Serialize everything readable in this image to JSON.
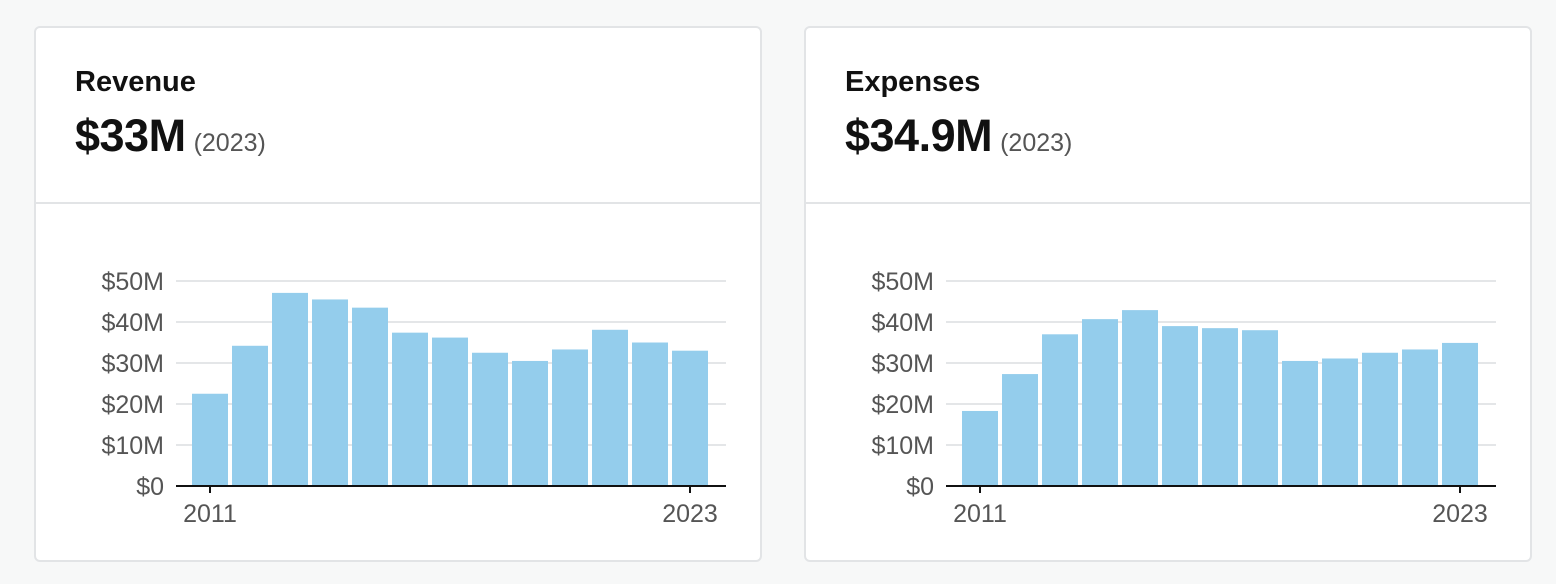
{
  "cards": [
    {
      "title": "Revenue",
      "value": "$33M",
      "period": "(2023)"
    },
    {
      "title": "Expenses",
      "value": "$34.9M",
      "period": "(2023)"
    }
  ],
  "chart_data": [
    {
      "type": "bar",
      "categories": [
        "2011",
        "2012",
        "2013",
        "2014",
        "2015",
        "2016",
        "2017",
        "2018",
        "2019",
        "2020",
        "2021",
        "2022",
        "2023"
      ],
      "values": [
        22.5,
        34.2,
        47.1,
        45.5,
        43.5,
        37.4,
        36.2,
        32.5,
        30.5,
        33.3,
        38.1,
        35.0,
        33.0
      ],
      "ylim": [
        0,
        50
      ],
      "yticks": [
        0,
        10,
        20,
        30,
        40,
        50
      ],
      "ytick_labels": [
        "$0",
        "$10M",
        "$20M",
        "$30M",
        "$40M",
        "$50M"
      ],
      "xtick_labels": [
        "2011",
        "2023"
      ],
      "grid": true,
      "bar_color": "#94cdec"
    },
    {
      "type": "bar",
      "categories": [
        "2011",
        "2012",
        "2013",
        "2014",
        "2015",
        "2016",
        "2017",
        "2018",
        "2019",
        "2020",
        "2021",
        "2022",
        "2023"
      ],
      "values": [
        18.3,
        27.3,
        37.0,
        40.7,
        42.9,
        39.0,
        38.5,
        38.0,
        30.5,
        31.1,
        32.5,
        33.3,
        34.9
      ],
      "ylim": [
        0,
        50
      ],
      "yticks": [
        0,
        10,
        20,
        30,
        40,
        50
      ],
      "ytick_labels": [
        "$0",
        "$10M",
        "$20M",
        "$30M",
        "$40M",
        "$50M"
      ],
      "xtick_labels": [
        "2011",
        "2023"
      ],
      "grid": true,
      "bar_color": "#94cdec"
    }
  ]
}
